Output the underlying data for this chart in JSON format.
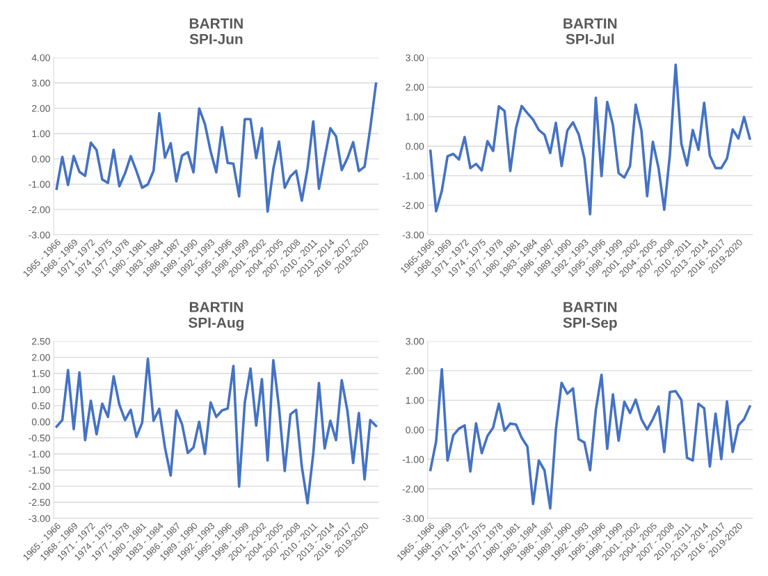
{
  "chart_data": [
    {
      "type": "line",
      "title": "BARTIN\nSPI-Jun",
      "grid": "y",
      "marker": "none",
      "line_style": "solid",
      "categories": [
        "1965 - 1966",
        null,
        null,
        "1968 - 1969",
        null,
        null,
        "1971 - 1972",
        null,
        null,
        "1974 - 1975",
        null,
        null,
        "1977 - 1978",
        null,
        null,
        "1980 - 1981",
        null,
        null,
        "1983 - 1984",
        null,
        null,
        "1986 - 1987",
        null,
        null,
        "1989 - 1990",
        null,
        null,
        "1992 - 1993",
        null,
        null,
        "1995 - 1996",
        null,
        null,
        "1998 - 1999",
        null,
        null,
        "2001 - 2002",
        null,
        null,
        "2004 - 2005",
        null,
        null,
        "2007 - 2008",
        null,
        null,
        "2010 - 2011",
        null,
        null,
        "2013 - 2014",
        null,
        null,
        "2016 - 2017",
        null,
        null,
        "2019-2020",
        null,
        null
      ],
      "series": [
        {
          "color": "#4472c4",
          "values": [
            -1.18,
            0.08,
            -1.03,
            0.11,
            -0.51,
            -0.67,
            0.64,
            0.35,
            -0.81,
            -0.95,
            0.36,
            -1.08,
            -0.57,
            0.11,
            -0.48,
            -1.14,
            -1.01,
            -0.47,
            1.8,
            0.05,
            0.62,
            -0.89,
            0.13,
            0.26,
            -0.53,
            1.99,
            1.38,
            0.3,
            -0.53,
            1.25,
            -0.16,
            -0.19,
            -1.48,
            1.57,
            1.57,
            0.03,
            1.21,
            -2.08,
            -0.4,
            0.68,
            -1.14,
            -0.69,
            -0.47,
            -1.65,
            -0.38,
            1.48,
            -1.18,
            0.03,
            1.21,
            0.89,
            -0.44,
            0.03,
            0.66,
            -0.48,
            -0.31,
            1.21,
            2.97
          ]
        }
      ],
      "ylim": [
        -3,
        4
      ],
      "yticks": [
        {
          "value": -3,
          "label": "-3.00"
        },
        {
          "value": -2,
          "label": "-2.00"
        },
        {
          "value": -1,
          "label": "-1.00"
        },
        {
          "value": 0,
          "label": "0.00"
        },
        {
          "value": 1,
          "label": "1.00"
        },
        {
          "value": 2,
          "label": "2.00"
        },
        {
          "value": 3,
          "label": "3.00"
        },
        {
          "value": 4,
          "label": "4.00"
        }
      ]
    },
    {
      "type": "line",
      "title": "BARTIN\nSPI-Jul",
      "grid": "y",
      "marker": "none",
      "line_style": "solid",
      "categories": [
        "1965-1966",
        null,
        null,
        "1968 - 1969",
        null,
        null,
        "1971 - 1972",
        null,
        null,
        "1974 - 1975",
        null,
        null,
        "1977 - 1978",
        null,
        null,
        "1980 - 1981",
        null,
        null,
        "1983 - 1984",
        null,
        null,
        "1986 - 1987",
        null,
        null,
        "1989 - 1990",
        null,
        null,
        "1992 - 1993",
        null,
        null,
        "1995 - 1996",
        null,
        null,
        "1998 - 1999",
        null,
        null,
        "2001 - 2002",
        null,
        null,
        "2004 - 2005",
        null,
        null,
        "2007 - 2008",
        null,
        null,
        "2010 - 2011",
        null,
        null,
        "2013 - 2014",
        null,
        null,
        "2016 - 2017",
        null,
        null,
        "2019-2020",
        null,
        null
      ],
      "series": [
        {
          "color": "#4472c4",
          "values": [
            -0.16,
            -2.2,
            -1.51,
            -0.34,
            -0.26,
            -0.45,
            0.31,
            -0.74,
            -0.6,
            -0.82,
            0.17,
            -0.16,
            1.35,
            1.19,
            -0.84,
            0.61,
            1.36,
            1.12,
            0.9,
            0.55,
            0.39,
            -0.23,
            0.79,
            -0.67,
            0.53,
            0.81,
            0.4,
            -0.42,
            -2.3,
            1.64,
            -1.01,
            1.5,
            0.72,
            -0.91,
            -1.06,
            -0.67,
            1.41,
            0.53,
            -1.69,
            0.15,
            -0.74,
            -2.15,
            -0.27,
            2.76,
            0.09,
            -0.65,
            0.55,
            -0.12,
            1.47,
            -0.32,
            -0.74,
            -0.74,
            -0.42,
            0.57,
            0.26,
            0.99,
            0.26
          ]
        }
      ],
      "ylim": [
        -3,
        3
      ],
      "yticks": [
        {
          "value": -3,
          "label": "-3.00"
        },
        {
          "value": -2,
          "label": "-2.00"
        },
        {
          "value": -1,
          "label": "-1.00"
        },
        {
          "value": 0,
          "label": "0.00"
        },
        {
          "value": 1,
          "label": "1.00"
        },
        {
          "value": 2,
          "label": "2.00"
        },
        {
          "value": 3,
          "label": "3.00"
        }
      ]
    },
    {
      "type": "line",
      "title": "BARTIN\nSPI-Aug",
      "grid": "y",
      "marker": "none",
      "line_style": "solid",
      "categories": [
        "1965 - 1966",
        null,
        null,
        "1968 - 1969",
        null,
        null,
        "1971 - 1972",
        null,
        null,
        "1974 - 1975",
        null,
        null,
        "1977 - 1978",
        null,
        null,
        "1980 - 1981",
        null,
        null,
        "1983 - 1984",
        null,
        null,
        "1986 - 1987",
        null,
        null,
        "1989 - 1990",
        null,
        null,
        "1992 - 1993",
        null,
        null,
        "1995 - 1996",
        null,
        null,
        "1998 - 1999",
        null,
        null,
        "2001 - 2002",
        null,
        null,
        "2004 - 2005",
        null,
        null,
        "2007 - 2008",
        null,
        null,
        "2010 - 2011",
        null,
        null,
        "2013 - 2014",
        null,
        null,
        "2016 - 2017",
        null,
        null,
        "2019-2020",
        null,
        null
      ],
      "series": [
        {
          "color": "#4472c4",
          "values": [
            -0.15,
            0.05,
            1.6,
            -0.23,
            1.53,
            -0.57,
            0.65,
            -0.39,
            0.56,
            0.15,
            1.41,
            0.53,
            0.05,
            0.37,
            -0.47,
            -0.03,
            1.95,
            0.03,
            0.4,
            -0.8,
            -1.67,
            0.35,
            -0.08,
            -0.97,
            -0.8,
            0.0,
            -1.0,
            0.6,
            0.15,
            0.35,
            0.41,
            1.73,
            -2.01,
            0.6,
            1.65,
            -0.12,
            1.32,
            -1.2,
            1.91,
            0.43,
            -1.53,
            0.23,
            0.37,
            -1.4,
            -2.53,
            -1.0,
            1.2,
            -0.83,
            0.03,
            -0.57,
            1.29,
            0.33,
            -1.28,
            0.27,
            -1.79,
            0.05,
            -0.13
          ]
        }
      ],
      "ylim": [
        -3,
        2.5
      ],
      "yticks": [
        {
          "value": -3,
          "label": "-3.00"
        },
        {
          "value": -2.5,
          "label": "-2.50"
        },
        {
          "value": -2,
          "label": "-2.00"
        },
        {
          "value": -1.5,
          "label": "-1.50"
        },
        {
          "value": -1,
          "label": "-1.00"
        },
        {
          "value": -0.5,
          "label": "-0.50"
        },
        {
          "value": 0,
          "label": "0.00"
        },
        {
          "value": 0.5,
          "label": "0.50"
        },
        {
          "value": 1,
          "label": "1.00"
        },
        {
          "value": 1.5,
          "label": "1.50"
        },
        {
          "value": 2,
          "label": "2.00"
        },
        {
          "value": 2.5,
          "label": "2.50"
        }
      ]
    },
    {
      "type": "line",
      "title": "BARTIN\nSPI-Sep",
      "grid": "y",
      "marker": "none",
      "line_style": "solid",
      "categories": [
        "1965 - 1966",
        null,
        null,
        "1968 - 1969",
        null,
        null,
        "1971 - 1972",
        null,
        null,
        "1974 - 1975",
        null,
        null,
        "1977 - 1978",
        null,
        null,
        "1980 - 1981",
        null,
        null,
        "1983 - 1984",
        null,
        null,
        "1986 - 1987",
        null,
        null,
        "1989 - 1990",
        null,
        null,
        "1992 - 1993",
        null,
        null,
        "1995 - 1996",
        null,
        null,
        "1998 - 1999",
        null,
        null,
        "2001 - 2002",
        null,
        null,
        "2004 - 2005",
        null,
        null,
        "2007 - 2008",
        null,
        null,
        "2010 - 2011",
        null,
        null,
        "2013 - 2014",
        null,
        null,
        "2016 - 2017",
        null,
        null,
        "2019-2020",
        null,
        null
      ],
      "series": [
        {
          "color": "#4472c4",
          "values": [
            -1.36,
            -0.39,
            2.05,
            -1.04,
            -0.19,
            0.04,
            0.15,
            -1.41,
            0.22,
            -0.79,
            -0.21,
            0.08,
            0.88,
            -0.03,
            0.21,
            0.18,
            -0.27,
            -0.57,
            -2.51,
            -1.04,
            -1.37,
            -2.66,
            0.01,
            1.59,
            1.22,
            1.4,
            -0.32,
            -0.43,
            -1.37,
            0.67,
            1.86,
            -0.64,
            1.2,
            -0.37,
            0.95,
            0.57,
            1.02,
            0.36,
            0.01,
            0.36,
            0.79,
            -0.75,
            1.28,
            1.31,
            1.01,
            -0.95,
            -1.04,
            0.88,
            0.73,
            -1.24,
            0.55,
            -0.99,
            0.96,
            -0.75,
            0.15,
            0.36,
            0.79
          ]
        }
      ],
      "ylim": [
        -3,
        3
      ],
      "yticks": [
        {
          "value": -3,
          "label": "-3.00"
        },
        {
          "value": -2,
          "label": "-2.00"
        },
        {
          "value": -1,
          "label": "-1.00"
        },
        {
          "value": 0,
          "label": "0.00"
        },
        {
          "value": 1,
          "label": "1.00"
        },
        {
          "value": 2,
          "label": "2.00"
        },
        {
          "value": 3,
          "label": "3.00"
        }
      ]
    }
  ]
}
